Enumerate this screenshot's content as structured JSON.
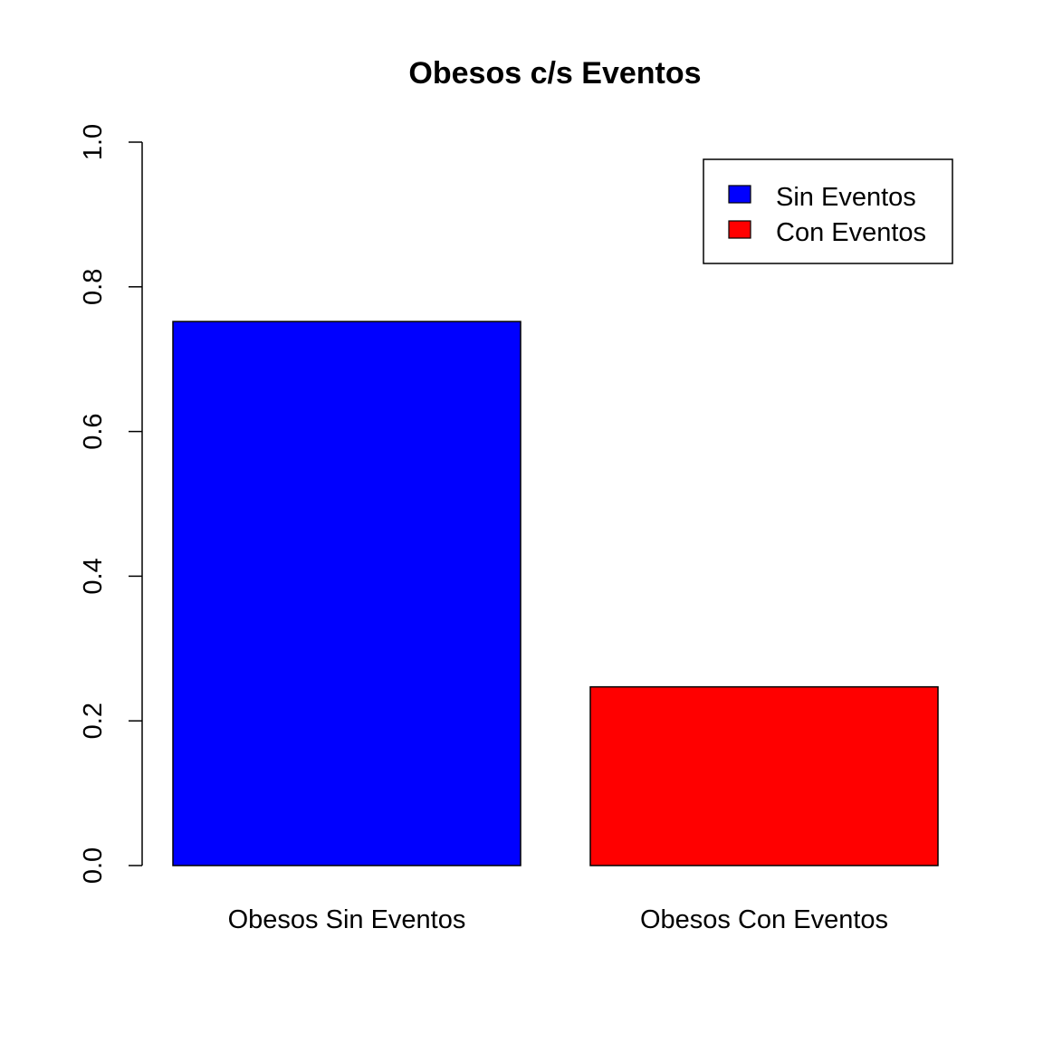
{
  "chart_data": {
    "type": "bar",
    "title": "Obesos c/s Eventos",
    "xlabel": "",
    "ylabel": "",
    "categories": [
      "Obesos Sin Eventos",
      "Obesos Con Eventos"
    ],
    "values": [
      0.752,
      0.247
    ],
    "colors": [
      "#0000ff",
      "#ff0000"
    ],
    "ylim": [
      0,
      1
    ],
    "yticks": [
      0.0,
      0.2,
      0.4,
      0.6,
      0.8,
      1.0
    ],
    "ytick_labels": [
      "0.0",
      "0.2",
      "0.4",
      "0.6",
      "0.8",
      "1.0"
    ],
    "grid": false,
    "legend": {
      "position": "top-right",
      "entries": [
        {
          "label": "Sin Eventos",
          "color": "#0000ff"
        },
        {
          "label": "Con Eventos",
          "color": "#ff0000"
        }
      ]
    }
  }
}
